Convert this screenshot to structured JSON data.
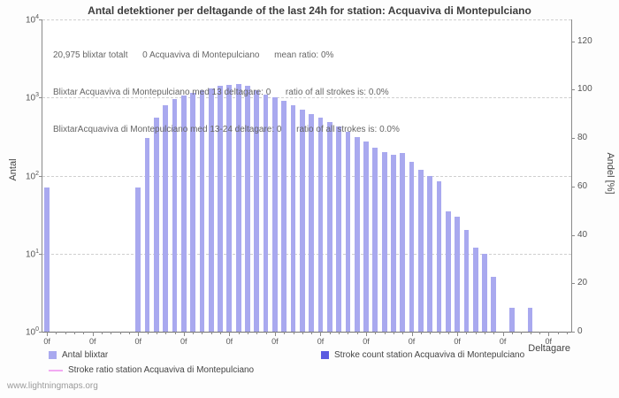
{
  "title": "Antal detektioner per deltagande of the last 24h for station: Acquaviva di Montepulciano",
  "annotations": {
    "line1": "20,975 blixtar totalt      0 Acquaviva di Montepulciano      mean ratio: 0%",
    "line2": "Blixtar Acquaviva di Montepulciano med 13 deltagare: 0      ratio of all strokes is: 0.0%",
    "line3": "BlixtarAcquaviva di Montepulciano med 13-24 deltagare: 0      ratio of all strokes is: 0.0%"
  },
  "axes": {
    "y_left_label": "Antal",
    "y_right_label": "Andel [%]",
    "x_label": "Deltagare"
  },
  "legend": {
    "items": [
      {
        "label": "Antal blixtar",
        "color": "#a9a9ef",
        "type": "square"
      },
      {
        "label": "Stroke count station Acquaviva di Montepulciano",
        "color": "#5b5be0",
        "type": "square"
      },
      {
        "label": "Stroke ratio station Acquaviva di Montepulciano",
        "color": "#f2a9f2",
        "type": "line"
      }
    ]
  },
  "watermark": "www.lightningmaps.org",
  "chart_data": {
    "type": "bar",
    "title": "Antal detektioner per deltagande of the last 24h for station: Acquaviva di Montepulciano",
    "xlabel": "Deltagare",
    "ylabel_left": "Antal",
    "ylabel_right": "Andel [%]",
    "y_scale": "log",
    "y_min": 1,
    "y_max": 10000,
    "y_left_tick_labels": [
      "10^0",
      "10^1",
      "10^2",
      "10^3",
      "10^4"
    ],
    "y_right_ticks": [
      0,
      20,
      40,
      60,
      80,
      100,
      120
    ],
    "y_right_max_at_top": 129,
    "x_range": [
      0,
      57
    ],
    "x_tick_label": "0f",
    "x_tick_label_step": 5,
    "grid": "dashed-horizontal",
    "bar_color": "#a9a9ef",
    "counts": [
      70,
      0,
      0,
      0,
      0,
      0,
      0,
      0,
      0,
      0,
      70,
      300,
      550,
      800,
      950,
      1050,
      1150,
      1250,
      1300,
      1400,
      1450,
      1500,
      1400,
      1250,
      1100,
      1000,
      900,
      800,
      700,
      620,
      550,
      480,
      420,
      360,
      310,
      270,
      230,
      200,
      185,
      195,
      150,
      120,
      100,
      85,
      35,
      30,
      20,
      12,
      10,
      5,
      0,
      2,
      0,
      2,
      0,
      0,
      0,
      0
    ],
    "stroke_ratio_percent_series": 0,
    "summary": {
      "total_blixtar": "20,975",
      "station_strokes": 0,
      "mean_ratio": "0%",
      "strokes_med_13_deltagare": 0,
      "ratio_med_13_deltagare": "0.0%",
      "strokes_med_13_24_deltagare": 0,
      "ratio_med_13_24_deltagare": "0.0%"
    }
  }
}
